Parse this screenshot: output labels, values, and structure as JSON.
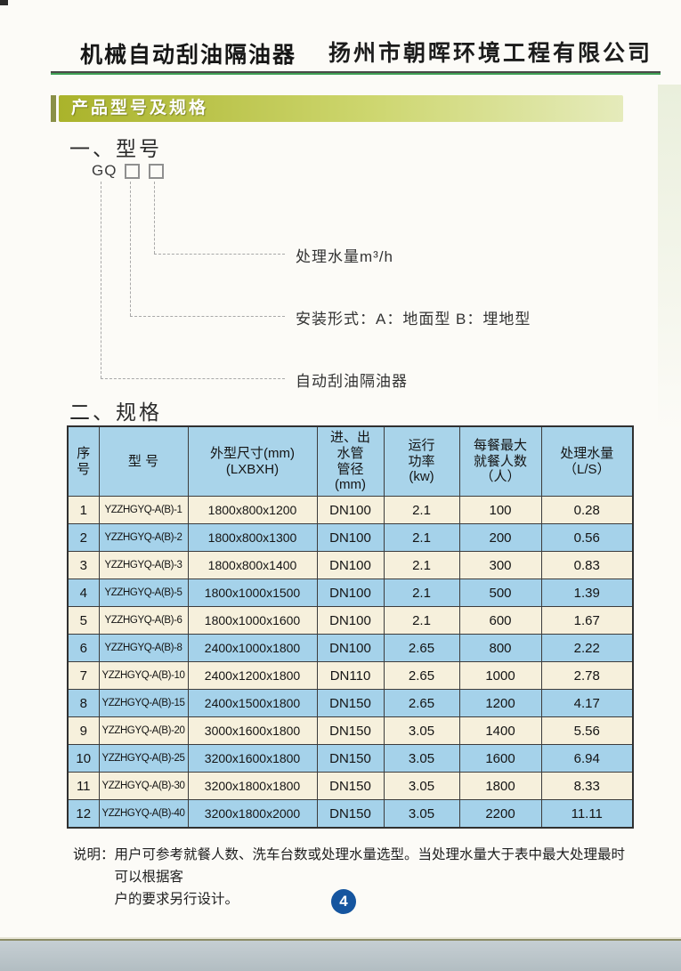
{
  "header": {
    "title": "机械自动刮油隔油器",
    "company": "扬州市朝晖环境工程有限公司",
    "banner": "产品型号及规格"
  },
  "model_section": {
    "heading": "一、型号",
    "code_prefix": "GQ",
    "callouts": [
      {
        "label": "处理水量m³/h"
      },
      {
        "label": "安装形式：A：地面型  B：埋地型"
      },
      {
        "label": "自动刮油隔油器"
      }
    ]
  },
  "spec_section": {
    "heading": "二、规格",
    "table": {
      "headers": [
        "序\n号",
        "型  号",
        "外型尺寸(mm)\n(LXBXH)",
        "进、出\n水管\n管径\n(mm)",
        "运行\n功率\n(kw)",
        "每餐最大\n就餐人数\n（人）",
        "处理水量\n（L/S）"
      ],
      "rows": [
        [
          "1",
          "YZZHGYQ-A(B)-1",
          "1800x800x1200",
          "DN100",
          "2.1",
          "100",
          "0.28"
        ],
        [
          "2",
          "YZZHGYQ-A(B)-2",
          "1800x800x1300",
          "DN100",
          "2.1",
          "200",
          "0.56"
        ],
        [
          "3",
          "YZZHGYQ-A(B)-3",
          "1800x800x1400",
          "DN100",
          "2.1",
          "300",
          "0.83"
        ],
        [
          "4",
          "YZZHGYQ-A(B)-5",
          "1800x1000x1500",
          "DN100",
          "2.1",
          "500",
          "1.39"
        ],
        [
          "5",
          "YZZHGYQ-A(B)-6",
          "1800x1000x1600",
          "DN100",
          "2.1",
          "600",
          "1.67"
        ],
        [
          "6",
          "YZZHGYQ-A(B)-8",
          "2400x1000x1800",
          "DN100",
          "2.65",
          "800",
          "2.22"
        ],
        [
          "7",
          "YZZHGYQ-A(B)-10",
          "2400x1200x1800",
          "DN110",
          "2.65",
          "1000",
          "2.78"
        ],
        [
          "8",
          "YZZHGYQ-A(B)-15",
          "2400x1500x1800",
          "DN150",
          "2.65",
          "1200",
          "4.17"
        ],
        [
          "9",
          "YZZHGYQ-A(B)-20",
          "3000x1600x1800",
          "DN150",
          "3.05",
          "1400",
          "5.56"
        ],
        [
          "10",
          "YZZHGYQ-A(B)-25",
          "3200x1600x1800",
          "DN150",
          "3.05",
          "1600",
          "6.94"
        ],
        [
          "11",
          "YZZHGYQ-A(B)-30",
          "3200x1800x1800",
          "DN150",
          "3.05",
          "1800",
          "8.33"
        ],
        [
          "12",
          "YZZHGYQ-A(B)-40",
          "3200x1800x2000",
          "DN150",
          "3.05",
          "2200",
          "11.11"
        ]
      ]
    },
    "note_label": "说明：",
    "note_text": "用户可参考就餐人数、洗车台数或处理水量选型。当处理水量大于表中最大处理最时可以根据客\n户的要求另行设计。"
  },
  "footer": {
    "page_number": "4"
  },
  "colors": {
    "banner_start": "#aab32b",
    "banner_end": "#e5ebbb",
    "banner_accent_bar": "#8a9048",
    "rule_green": "#3fa055",
    "table_header_bg": "#a9d4ea",
    "row_cream": "#f6f0dc",
    "row_blue": "#a5d2ea",
    "page_circle_blue": "#15559f"
  }
}
